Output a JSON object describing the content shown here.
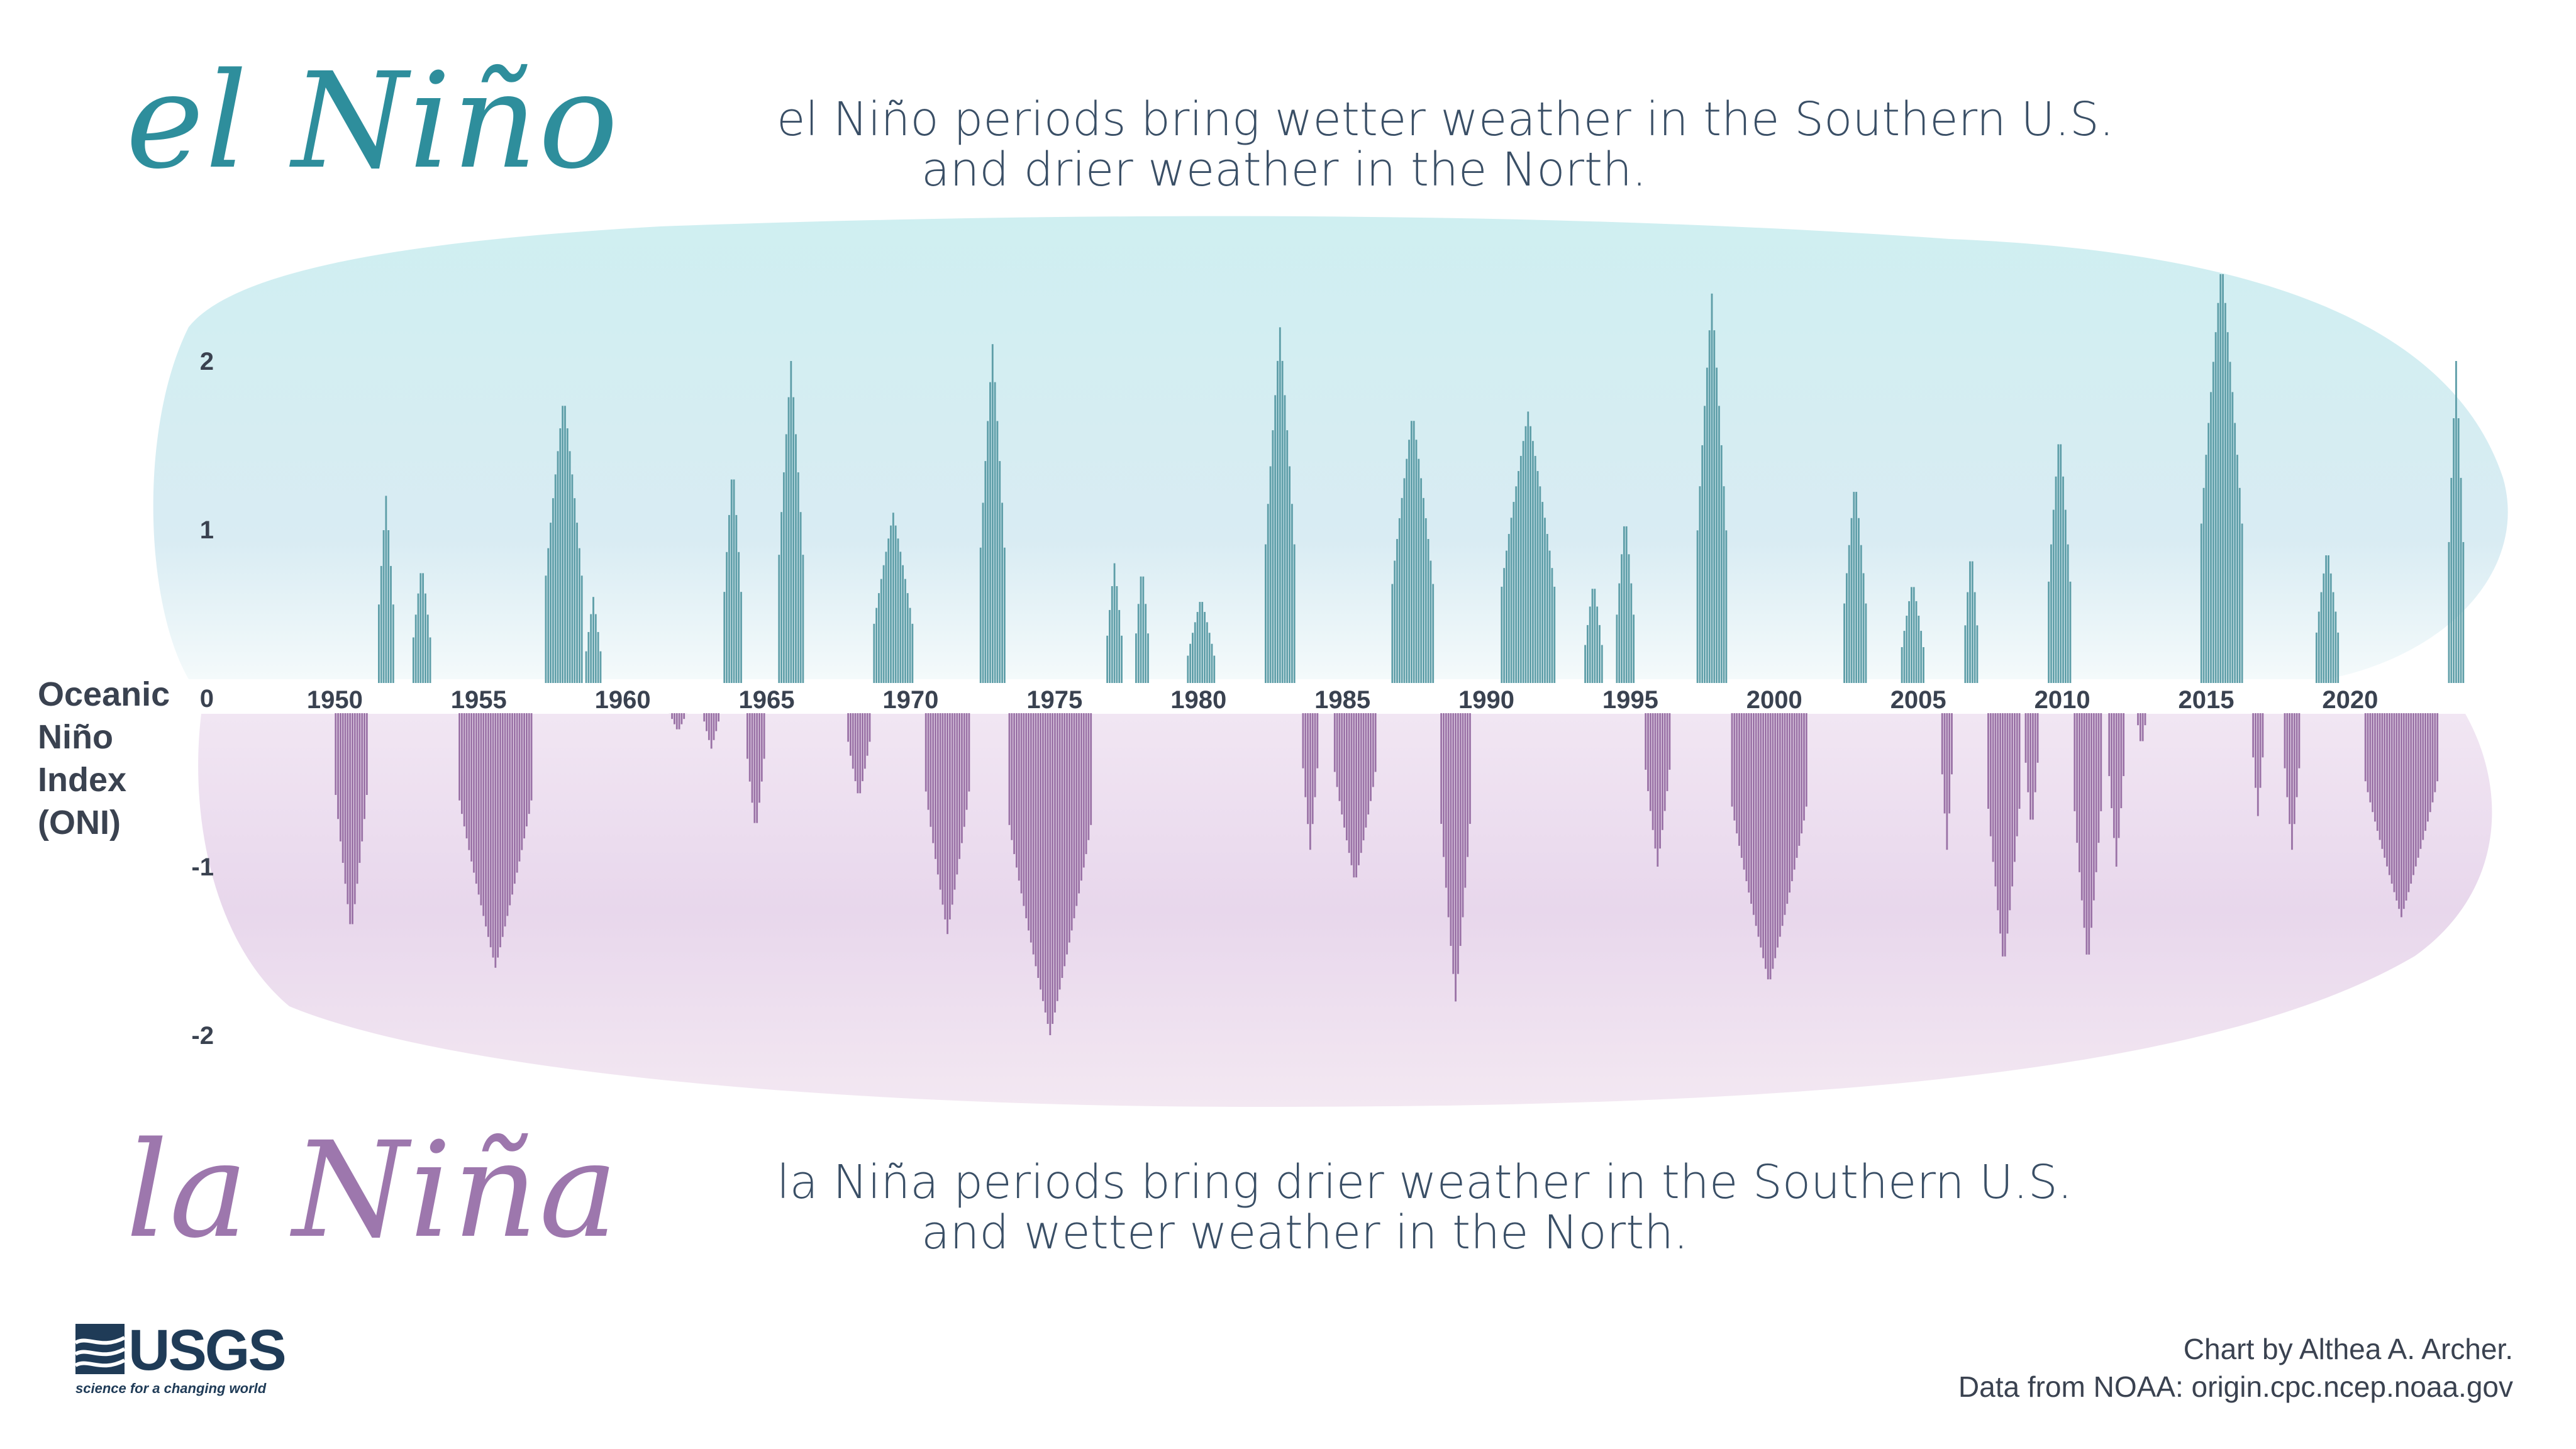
{
  "header": {
    "elnino_title": "el Niño",
    "elnino_desc_line1": "el Niño periods bring wetter weather in the Southern U.S.",
    "elnino_desc_line2": "and drier weather in the North."
  },
  "footer": {
    "lanina_title": "la Niña",
    "lanina_desc_line1": "la Niña periods bring drier weather in the Southern U.S.",
    "lanina_desc_line2": "and wetter weather in the North.",
    "credit_line1": "Chart by Althea A. Archer.",
    "credit_line2": "Data from NOAA: origin.cpc.ncep.noaa.gov",
    "logo_text": "USGS",
    "logo_tagline": "science for a changing world"
  },
  "colors": {
    "elnino": "#2e8e9c",
    "lanina": "#9d77ad",
    "positive_bar": "#5e9ea8",
    "negative_bar": "#9a72a6",
    "text": "#3a4250"
  },
  "chart_data": {
    "type": "bar",
    "ylabel": "Oceanic Niño Index (ONI)",
    "ylim": [
      -2.3,
      2.6
    ],
    "yticks": [
      -2,
      -1,
      0,
      1,
      2
    ],
    "xticks": [
      1950,
      1955,
      1960,
      1965,
      1970,
      1975,
      1980,
      1985,
      1990,
      1995,
      2000,
      2005,
      2010,
      2015,
      2020
    ],
    "grid": false,
    "x_range": [
      1947,
      2024
    ],
    "events": [
      {
        "start": 1950.0,
        "end": 1951.2,
        "peak": -1.4
      },
      {
        "start": 1951.5,
        "end": 1952.1,
        "peak": 1.2
      },
      {
        "start": 1952.7,
        "end": 1953.4,
        "peak": 0.8
      },
      {
        "start": 1954.3,
        "end": 1956.9,
        "peak": -1.6
      },
      {
        "start": 1957.3,
        "end": 1958.6,
        "peak": 1.8
      },
      {
        "start": 1958.7,
        "end": 1959.3,
        "peak": 0.6
      },
      {
        "start": 1961.6,
        "end": 1962.3,
        "peak": -0.2
      },
      {
        "start": 1962.8,
        "end": 1963.4,
        "peak": -0.3
      },
      {
        "start": 1963.5,
        "end": 1964.2,
        "peak": 1.4
      },
      {
        "start": 1964.3,
        "end": 1965.0,
        "peak": -0.8
      },
      {
        "start": 1965.4,
        "end": 1966.3,
        "peak": 2.0
      },
      {
        "start": 1967.8,
        "end": 1968.6,
        "peak": -0.6
      },
      {
        "start": 1968.7,
        "end": 1970.1,
        "peak": 1.1
      },
      {
        "start": 1970.5,
        "end": 1972.1,
        "peak": -1.4
      },
      {
        "start": 1972.4,
        "end": 1973.3,
        "peak": 2.1
      },
      {
        "start": 1973.4,
        "end": 1976.3,
        "peak": -2.0
      },
      {
        "start": 1976.8,
        "end": 1977.4,
        "peak": 0.8
      },
      {
        "start": 1977.8,
        "end": 1978.3,
        "peak": 0.8
      },
      {
        "start": 1979.6,
        "end": 1980.6,
        "peak": 0.6
      },
      {
        "start": 1983.6,
        "end": 1984.2,
        "peak": -0.9
      },
      {
        "start": 1982.3,
        "end": 1983.4,
        "peak": 2.2
      },
      {
        "start": 1984.7,
        "end": 1986.2,
        "peak": -1.1
      },
      {
        "start": 1986.7,
        "end": 1988.2,
        "peak": 1.7
      },
      {
        "start": 1988.4,
        "end": 1989.5,
        "peak": -1.8
      },
      {
        "start": 1990.5,
        "end": 1992.4,
        "peak": 1.7
      },
      {
        "start": 1993.4,
        "end": 1994.1,
        "peak": 0.7
      },
      {
        "start": 1994.5,
        "end": 1995.2,
        "peak": 1.1
      },
      {
        "start": 1995.5,
        "end": 1996.4,
        "peak": -1.0
      },
      {
        "start": 1997.3,
        "end": 1998.4,
        "peak": 2.4
      },
      {
        "start": 1998.5,
        "end": 2001.2,
        "peak": -1.7
      },
      {
        "start": 2002.4,
        "end": 2003.2,
        "peak": 1.3
      },
      {
        "start": 2004.4,
        "end": 2005.2,
        "peak": 0.7
      },
      {
        "start": 2005.8,
        "end": 2006.2,
        "peak": -0.9
      },
      {
        "start": 2006.6,
        "end": 2007.1,
        "peak": 0.9
      },
      {
        "start": 2007.4,
        "end": 2008.6,
        "peak": -1.6
      },
      {
        "start": 2008.7,
        "end": 2009.2,
        "peak": -0.8
      },
      {
        "start": 2009.5,
        "end": 2010.3,
        "peak": 1.6
      },
      {
        "start": 2010.4,
        "end": 2011.4,
        "peak": -1.6
      },
      {
        "start": 2011.6,
        "end": 2012.2,
        "peak": -1.0
      },
      {
        "start": 2012.6,
        "end": 2012.9,
        "peak": -0.3
      },
      {
        "start": 2014.8,
        "end": 2016.3,
        "peak": 2.6
      },
      {
        "start": 2016.6,
        "end": 2017.0,
        "peak": -0.7
      },
      {
        "start": 2017.7,
        "end": 2018.3,
        "peak": -0.9
      },
      {
        "start": 2018.8,
        "end": 2019.6,
        "peak": 0.9
      },
      {
        "start": 2020.5,
        "end": 2023.1,
        "peak": -1.3
      },
      {
        "start": 2023.4,
        "end": 2024.0,
        "peak": 2.0
      }
    ]
  }
}
